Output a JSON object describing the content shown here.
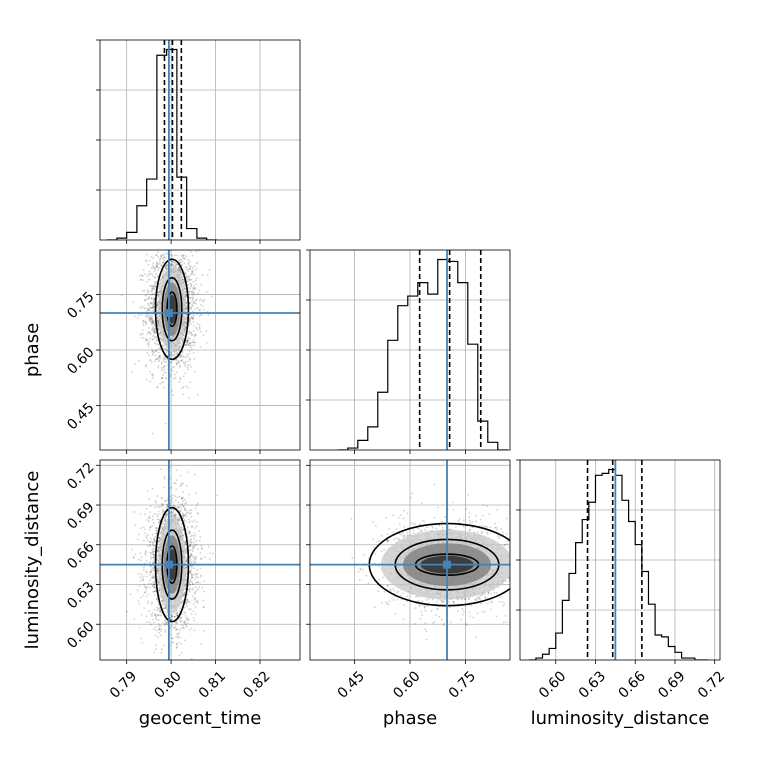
{
  "chart_data": {
    "type": "corner",
    "parameters": [
      "geocent_time",
      "phase",
      "luminosity_distance"
    ],
    "truths": {
      "geocent_time": 0.7995,
      "phase": 0.7,
      "luminosity_distance": 0.645
    },
    "colors": {
      "truth": "#4682b4",
      "lines": "#000000",
      "grid": "#b0b0b0"
    },
    "grid": true,
    "axes": {
      "geocent_time": {
        "range": [
          0.784,
          0.829
        ],
        "ticks": [
          0.79,
          0.8,
          0.81,
          0.82
        ],
        "tick_labels": [
          "0.79",
          "0.80",
          "0.81",
          "0.82"
        ]
      },
      "phase": {
        "range": [
          0.33,
          0.87
        ],
        "ticks": [
          0.45,
          0.6,
          0.75
        ],
        "tick_labels": [
          "0.45",
          "0.60",
          "0.75"
        ]
      },
      "luminosity_distance": {
        "range": [
          0.573,
          0.724
        ],
        "ticks": [
          0.6,
          0.63,
          0.66,
          0.69,
          0.72
        ],
        "tick_labels": [
          "0.60",
          "0.63",
          "0.66",
          "0.69",
          "0.72"
        ]
      }
    },
    "histograms": {
      "geocent_time": {
        "bin_edges": [
          0.7855,
          0.7878,
          0.79,
          0.7923,
          0.7945,
          0.7968,
          0.799,
          0.8013,
          0.8035,
          0.8058,
          0.808,
          0.8103
        ],
        "counts": [
          0,
          1,
          4,
          18,
          32,
          97,
          100,
          33,
          6,
          1,
          0
        ],
        "quantiles": [
          0.7985,
          0.8003,
          0.8023
        ]
      },
      "phase": {
        "bin_edges": [
          0.405,
          0.432,
          0.459,
          0.486,
          0.513,
          0.54,
          0.567,
          0.594,
          0.621,
          0.648,
          0.675,
          0.702,
          0.729,
          0.756,
          0.783,
          0.81,
          0.837,
          0.864
        ],
        "counts": [
          0,
          1,
          5,
          12,
          30,
          57,
          75,
          80,
          87,
          81,
          99,
          98,
          87,
          55,
          15,
          4,
          0
        ],
        "quantiles": [
          0.626,
          0.707,
          0.791
        ]
      },
      "luminosity_distance": {
        "bin_edges": [
          0.58,
          0.585,
          0.59,
          0.595,
          0.6,
          0.605,
          0.61,
          0.615,
          0.62,
          0.625,
          0.63,
          0.635,
          0.64,
          0.645,
          0.65,
          0.655,
          0.66,
          0.665,
          0.67,
          0.675,
          0.68,
          0.685,
          0.69,
          0.695,
          0.7,
          0.705,
          0.71,
          0.715
        ],
        "counts": [
          0,
          1,
          3,
          6,
          14,
          31,
          45,
          61,
          73,
          82,
          96,
          97,
          99,
          96,
          83,
          72,
          60,
          46,
          29,
          13,
          12,
          7,
          4,
          1,
          1,
          0,
          0
        ],
        "quantiles": [
          0.624,
          0.643,
          0.665
        ]
      }
    },
    "panels_2d": [
      {
        "x": "geocent_time",
        "y": "phase",
        "center": [
          0.8002,
          0.71
        ],
        "spread": [
          0.0028,
          0.08
        ],
        "contour_levels": [
          [
            0.0011,
            0.046
          ],
          [
            0.0022,
            0.085
          ],
          [
            0.0037,
            0.135
          ]
        ]
      },
      {
        "x": "geocent_time",
        "y": "luminosity_distance",
        "center": [
          0.8002,
          0.645
        ],
        "spread": [
          0.0028,
          0.024
        ],
        "contour_levels": [
          [
            0.0011,
            0.014
          ],
          [
            0.0022,
            0.026
          ],
          [
            0.0037,
            0.043
          ]
        ]
      },
      {
        "x": "phase",
        "y": "luminosity_distance",
        "center": [
          0.7,
          0.645
        ],
        "spread": [
          0.08,
          0.016
        ],
        "contour_levels": [
          [
            0.085,
            0.008
          ],
          [
            0.14,
            0.019
          ],
          [
            0.21,
            0.031
          ]
        ]
      }
    ]
  }
}
